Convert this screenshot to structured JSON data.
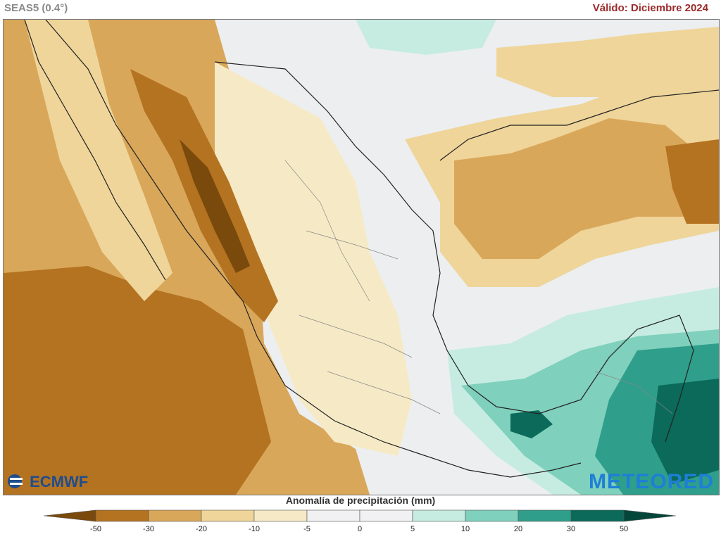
{
  "header": {
    "model": "SEAS5 (0.4°)",
    "valid": "Válido: Diciembre 2024"
  },
  "logos": {
    "left": "ECMWF",
    "right": "METEORED"
  },
  "colorbar": {
    "title": "Anomalía de precipitación (mm)",
    "ticks": [
      "-50",
      "-30",
      "-20",
      "-10",
      "-5",
      "0",
      "5",
      "10",
      "20",
      "30",
      "50"
    ],
    "colors": [
      "#7a4a0c",
      "#b47321",
      "#d9a75a",
      "#efd59a",
      "#f6eac6",
      "#f1f1f3",
      "#f1f1f3",
      "#c6ece1",
      "#7fd0bc",
      "#2f9e8b",
      "#0b6a5a",
      "#05463b"
    ]
  },
  "map": {
    "region": "Mexico",
    "ocean_color": "#ededf0",
    "land_base_color": "#f0f0f2"
  }
}
